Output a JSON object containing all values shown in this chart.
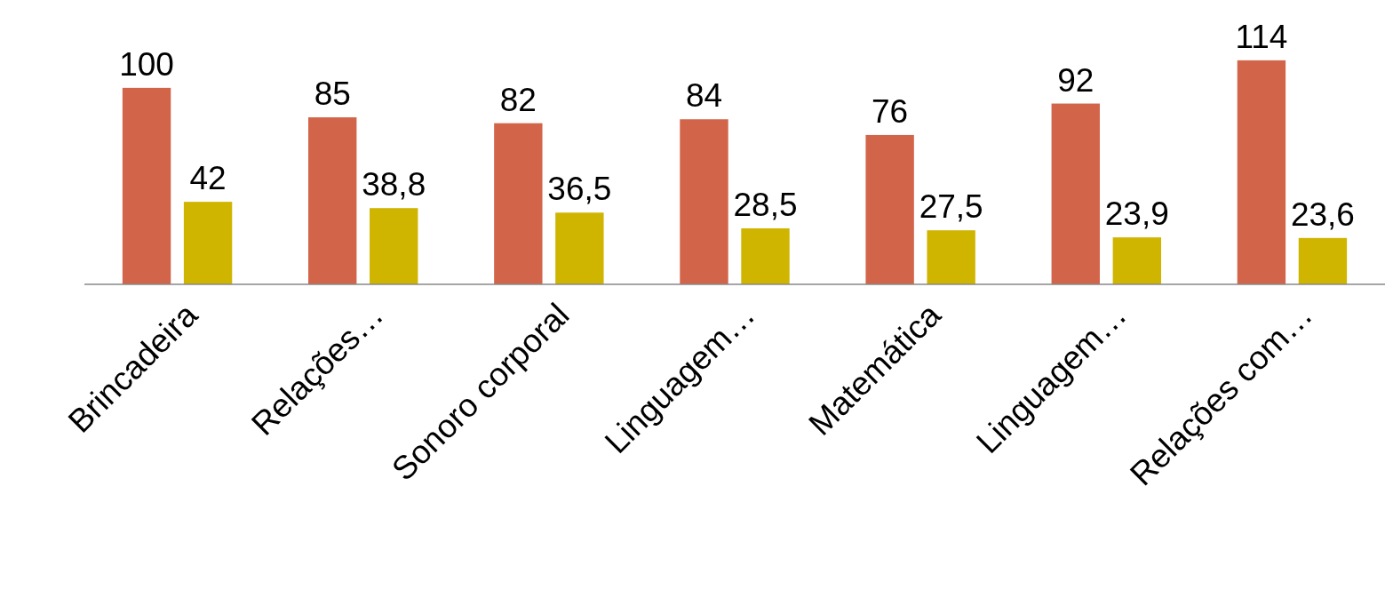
{
  "chart_data": {
    "type": "bar",
    "categories": [
      "Brincadeira",
      "Relações…",
      "Sonoro corporal",
      "Linguagem…",
      "Matemática",
      "Linguagem…",
      "Relações com…"
    ],
    "series": [
      {
        "color": "#d26449",
        "values": [
          100,
          85,
          82,
          84,
          76,
          92,
          114
        ],
        "value_labels": [
          "100",
          "85",
          "82",
          "84",
          "76",
          "92",
          "114"
        ]
      },
      {
        "color": "#cfb500",
        "values": [
          42,
          38.8,
          36.5,
          28.5,
          27.5,
          23.9,
          23.6
        ],
        "value_labels": [
          "42",
          "38,8",
          "36,5",
          "28,5",
          "27,5",
          "23,9",
          "23,6"
        ]
      }
    ]
  }
}
